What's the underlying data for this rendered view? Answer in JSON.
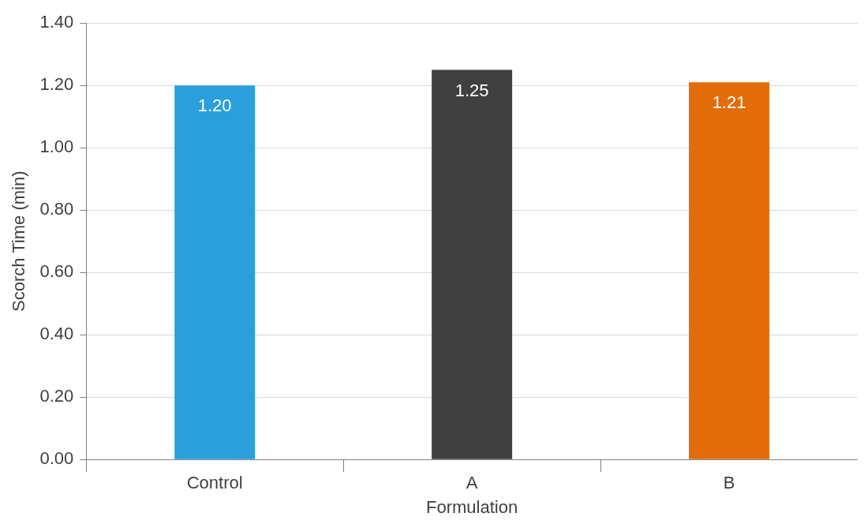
{
  "chart_data": {
    "type": "bar",
    "xlabel": "Formulation",
    "ylabel": "Scorch Time (min)",
    "categories": [
      "Control",
      "A",
      "B"
    ],
    "values": [
      1.2,
      1.25,
      1.21
    ],
    "colors": [
      "#2a9fdc",
      "#404040",
      "#e36c0a"
    ],
    "value_labels": [
      "1.20",
      "1.25",
      "1.21"
    ],
    "ylim": [
      0,
      1.4
    ],
    "yticks": [
      {
        "value": 0,
        "label": "0.00"
      },
      {
        "value": 0.2,
        "label": "0.20"
      },
      {
        "value": 0.4,
        "label": "0.40"
      },
      {
        "value": 0.6,
        "label": "0.60"
      },
      {
        "value": 0.8,
        "label": "0.80"
      },
      {
        "value": 1,
        "label": "1.00"
      },
      {
        "value": 1.2,
        "label": "1.20"
      },
      {
        "value": 1.4,
        "label": "1.40"
      }
    ],
    "grid": "y",
    "legend": false
  }
}
